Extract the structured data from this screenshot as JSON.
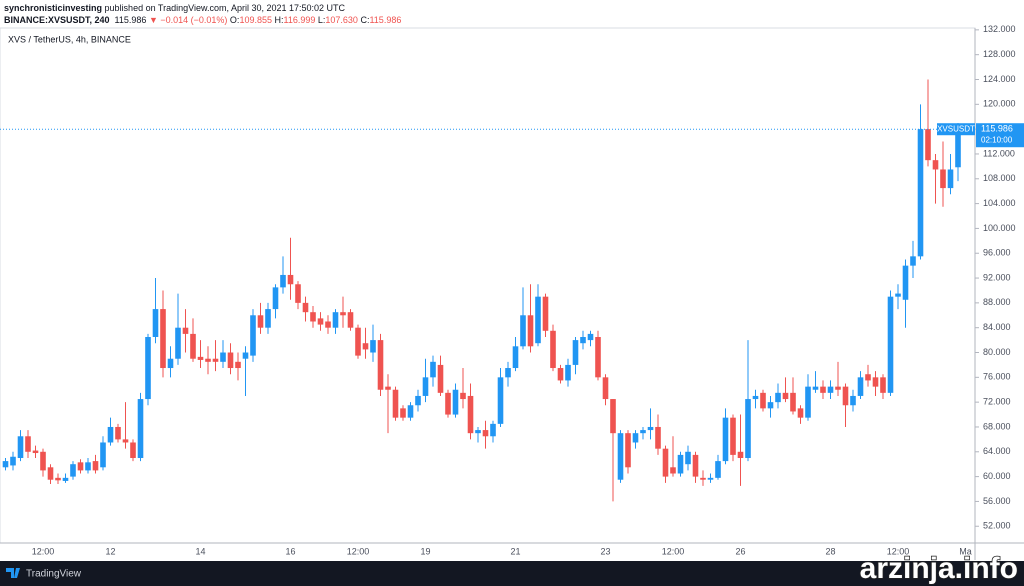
{
  "header": {
    "author": "synchronisticinvesting",
    "published": "published on TradingView.com, April 30, 2021 17:50:02 UTC",
    "symbol": "BINANCE:XVSUSDT, 240",
    "last": "115.986",
    "change": "▼ −0.014 (−0.01%)",
    "ohlc": [
      {
        "label": "O:",
        "value": "109.855"
      },
      {
        "label": "H:",
        "value": "116.999"
      },
      {
        "label": "L:",
        "value": "107.630"
      },
      {
        "label": "C:",
        "value": "115.986"
      }
    ]
  },
  "chart_data": {
    "type": "candlestick",
    "title": "XVS / TetherUS, 4h, BINANCE",
    "categories": [
      null,
      null,
      null,
      null,
      null,
      "12:00",
      null,
      null,
      null,
      null,
      null,
      null,
      null,
      null,
      "12",
      null,
      null,
      null,
      null,
      null,
      null,
      null,
      null,
      null,
      null,
      null,
      "14",
      null,
      null,
      null,
      null,
      null,
      null,
      null,
      null,
      null,
      null,
      null,
      "16",
      null,
      null,
      null,
      null,
      null,
      null,
      null,
      null,
      "12:00",
      null,
      null,
      null,
      null,
      null,
      null,
      null,
      null,
      "19",
      null,
      null,
      null,
      null,
      null,
      null,
      null,
      null,
      null,
      null,
      null,
      "21",
      null,
      null,
      null,
      null,
      null,
      null,
      null,
      null,
      null,
      null,
      null,
      "23",
      null,
      null,
      null,
      null,
      null,
      null,
      null,
      null,
      "12:00",
      null,
      null,
      null,
      null,
      null,
      null,
      null,
      null,
      "26",
      null,
      null,
      null,
      null,
      null,
      null,
      null,
      null,
      null,
      null,
      null,
      "28",
      null,
      null,
      null,
      null,
      null,
      null,
      null,
      null,
      "12:00",
      null,
      null,
      null,
      null,
      null,
      null,
      null,
      null,
      "Ma"
    ],
    "open": [
      61.5,
      61.8,
      63,
      66.5,
      64.2,
      64,
      61.5,
      59.8,
      59.3,
      60,
      62.3,
      61,
      62.5,
      61.5,
      65.5,
      68,
      66,
      65.5,
      63,
      72.5,
      82.5,
      87,
      77.5,
      79,
      84,
      83,
      79.3,
      79,
      79,
      78.5,
      80,
      78.5,
      79,
      79.5,
      86,
      84,
      87,
      90.5,
      92.5,
      91,
      88,
      86.5,
      85.5,
      85,
      84,
      86.5,
      86.5,
      84,
      81.5,
      80,
      82,
      74.5,
      74,
      71,
      69.5,
      71.5,
      73,
      76,
      78,
      73.5,
      70,
      73.5,
      73,
      67,
      67.5,
      66.5,
      68.5,
      76,
      77.5,
      81,
      86,
      81.5,
      89,
      83.5,
      77.5,
      75.5,
      78,
      81.5,
      82,
      82.5,
      76,
      72.5,
      59.5,
      67,
      65.5,
      67,
      67.5,
      68,
      64.5,
      61.5,
      60.5,
      62,
      63.5,
      59.8,
      59.5,
      59.8,
      62.5,
      69.5,
      64,
      63,
      72.5,
      73.5,
      71,
      72,
      73.5,
      73.5,
      71,
      69.5,
      74,
      74.5,
      73.5,
      74.5,
      74.5,
      71.5,
      73,
      76.5,
      76,
      76,
      73.5,
      89,
      88.5,
      94,
      95.5,
      116,
      111,
      109.5,
      106.5,
      109.855,
      null
    ],
    "high": [
      63,
      64,
      67.5,
      67.5,
      65,
      64.5,
      62,
      60.5,
      60.5,
      62.5,
      62.8,
      63,
      63.5,
      66.5,
      69.5,
      68.5,
      72,
      66,
      73.5,
      83,
      92,
      90,
      81,
      89.5,
      87,
      85.5,
      82,
      81,
      82,
      82,
      81.5,
      80,
      81,
      87,
      88,
      88,
      91,
      95.5,
      98.5,
      91.5,
      89,
      87.5,
      86.5,
      86,
      87,
      89,
      87,
      84.5,
      84,
      84.5,
      83,
      76.5,
      74.5,
      71.5,
      72,
      74,
      79,
      79.5,
      79.5,
      74,
      75,
      77.5,
      75,
      68,
      69,
      69,
      77.5,
      78.5,
      82.5,
      90.5,
      91,
      91,
      89.5,
      84.5,
      78,
      79,
      82.5,
      83.5,
      83.5,
      83.5,
      76.5,
      72.5,
      67.5,
      67.5,
      67.5,
      68,
      71,
      70,
      65,
      66.5,
      64,
      65,
      64,
      61,
      60.5,
      63.5,
      71,
      70,
      70,
      82,
      74,
      74,
      73,
      75,
      76,
      76,
      71.5,
      76.5,
      77,
      75.5,
      75.5,
      78.5,
      75,
      74,
      77,
      78,
      77,
      76.5,
      90,
      91,
      95,
      98,
      120,
      124,
      112,
      114,
      112,
      116.999,
      null
    ],
    "low": [
      61,
      61,
      62.5,
      63,
      63,
      60,
      58.8,
      58.8,
      59,
      59.5,
      60.5,
      60.5,
      60.5,
      61,
      65,
      65.5,
      64.5,
      62.5,
      62.5,
      71.5,
      81.5,
      76,
      76,
      78,
      80,
      78.5,
      77.5,
      76.5,
      77,
      77.5,
      76.5,
      75.5,
      73,
      78.5,
      83,
      83,
      85.5,
      89.5,
      88.5,
      87,
      85,
      84,
      83.5,
      83,
      83,
      84,
      83.5,
      79,
      79,
      78.5,
      73,
      67,
      69,
      69,
      69,
      70.5,
      72,
      74.5,
      73,
      69.5,
      69.5,
      71,
      66,
      65.5,
      64.5,
      65.5,
      68,
      74.5,
      77,
      80.5,
      80,
      81,
      82.5,
      77,
      75,
      74.5,
      76.5,
      80.5,
      81,
      75.5,
      71.5,
      56,
      59,
      60.5,
      64.5,
      66,
      66,
      63.5,
      59,
      60,
      60,
      61,
      59,
      58.5,
      59,
      59.5,
      62,
      62.5,
      58.5,
      62.5,
      71,
      70.5,
      69.5,
      71,
      72,
      70,
      68.5,
      69,
      73.5,
      72.5,
      72.5,
      73,
      68,
      70.5,
      72.5,
      74.5,
      73,
      72.5,
      73,
      87,
      84,
      92,
      95,
      110,
      104,
      103.5,
      105.5,
      107.63,
      null
    ],
    "close": [
      62.5,
      63.2,
      66.5,
      64,
      63.8,
      61,
      59.5,
      59.4,
      59.8,
      62,
      61,
      62.3,
      61,
      65.5,
      68,
      66,
      65.5,
      63,
      72.5,
      82.5,
      87,
      77.5,
      79,
      84,
      83,
      79,
      78.8,
      78.5,
      78.5,
      80,
      77.5,
      77.5,
      80,
      86,
      84,
      87,
      90.5,
      92.5,
      91,
      88,
      86.5,
      85,
      84.5,
      84,
      86.5,
      86,
      84,
      79.5,
      80.5,
      82,
      74,
      74,
      69.5,
      69.5,
      71.5,
      73,
      76,
      78.5,
      73.5,
      70,
      74,
      72.5,
      67,
      67.5,
      66.5,
      68.5,
      76,
      77.5,
      81,
      86,
      81,
      89,
      83.5,
      77.5,
      75.5,
      78,
      82,
      82.5,
      83,
      76,
      72.5,
      67,
      67,
      61.5,
      67,
      67.5,
      68,
      64.5,
      60,
      60.5,
      63.5,
      64,
      60,
      59.5,
      59.8,
      62.5,
      69.5,
      63.5,
      63,
      72.5,
      73,
      71,
      72,
      73.5,
      72.5,
      70.5,
      69.5,
      74.5,
      74.5,
      73.5,
      74.5,
      74,
      71.5,
      73,
      76,
      75.5,
      74.5,
      73.5,
      89,
      89.5,
      94,
      95.5,
      116,
      111,
      109.5,
      106.5,
      109.5,
      115.986,
      null
    ],
    "up_color": "#2196f3",
    "down_color": "#ef5350",
    "ylim": [
      49.3,
      132.3
    ],
    "yticks": [
      {
        "value": 52,
        "label": "52.000"
      },
      {
        "value": 56,
        "label": "56.000"
      },
      {
        "value": 60,
        "label": "60.000"
      },
      {
        "value": 64,
        "label": "64.000"
      },
      {
        "value": 68,
        "label": "68.000"
      },
      {
        "value": 72,
        "label": "72.000"
      },
      {
        "value": 76,
        "label": "76.000"
      },
      {
        "value": 80,
        "label": "80.000"
      },
      {
        "value": 84,
        "label": "84.000"
      },
      {
        "value": 88,
        "label": "88.000"
      },
      {
        "value": 92,
        "label": "92.000"
      },
      {
        "value": 96,
        "label": "96.000"
      },
      {
        "value": 100,
        "label": "100.000"
      },
      {
        "value": 104,
        "label": "104.000"
      },
      {
        "value": 108,
        "label": "108.000"
      },
      {
        "value": 112,
        "label": "112.000"
      },
      {
        "value": 116,
        "label": "116.000"
      },
      {
        "value": 120,
        "label": "120.000"
      },
      {
        "value": 124,
        "label": "124.000"
      },
      {
        "value": 128,
        "label": "128.000"
      },
      {
        "value": 132,
        "label": "132.000"
      }
    ],
    "grid": false,
    "last_price": {
      "value": 115.986,
      "label": "115.986",
      "symbol": "XVSUSDT",
      "countdown": "02:10:00"
    }
  },
  "footer": {
    "brand": "TradingView"
  },
  "watermark": "arzinja.info"
}
